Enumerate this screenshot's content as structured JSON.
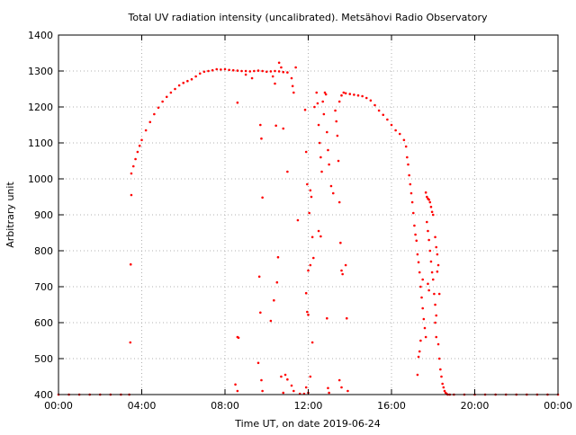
{
  "chart_data": {
    "type": "scatter",
    "title": "Total UV radiation intensity (uncalibrated). Metsähovi Radio Observatory",
    "xlabel": "Time UT, on date 2019-06-24",
    "ylabel": "Arbitrary unit",
    "xlim": [
      0,
      24
    ],
    "ylim": [
      400,
      1400
    ],
    "x_unit": "hours UT",
    "xticks": [
      {
        "value": 0,
        "label": "00:00"
      },
      {
        "value": 4,
        "label": "04:00"
      },
      {
        "value": 8,
        "label": "08:00"
      },
      {
        "value": 12,
        "label": "12:00"
      },
      {
        "value": 16,
        "label": "16:00"
      },
      {
        "value": 20,
        "label": "20:00"
      },
      {
        "value": 24,
        "label": "00:00"
      }
    ],
    "yticks": [
      400,
      500,
      600,
      700,
      800,
      900,
      1000,
      1100,
      1200,
      1300,
      1400
    ],
    "grid": true,
    "marker_color": "#ff0000",
    "series": [
      {
        "points": [
          [
            0.0,
            400
          ],
          [
            0.5,
            400
          ],
          [
            1.0,
            400
          ],
          [
            1.5,
            400
          ],
          [
            2.0,
            400
          ],
          [
            2.5,
            400
          ],
          [
            3.0,
            400
          ],
          [
            3.4,
            400
          ],
          [
            3.45,
            545
          ],
          [
            3.47,
            762
          ],
          [
            3.5,
            955
          ],
          [
            3.5,
            1015
          ],
          [
            3.6,
            1035
          ],
          [
            3.7,
            1055
          ],
          [
            3.8,
            1075
          ],
          [
            3.9,
            1092
          ],
          [
            4.0,
            1108
          ],
          [
            4.2,
            1135
          ],
          [
            4.4,
            1158
          ],
          [
            4.6,
            1180
          ],
          [
            4.8,
            1198
          ],
          [
            5.0,
            1215
          ],
          [
            5.2,
            1228
          ],
          [
            5.4,
            1240
          ],
          [
            5.6,
            1250
          ],
          [
            5.8,
            1260
          ],
          [
            6.0,
            1267
          ],
          [
            6.2,
            1272
          ],
          [
            6.4,
            1277
          ],
          [
            6.6,
            1285
          ],
          [
            6.8,
            1293
          ],
          [
            7.0,
            1298
          ],
          [
            7.2,
            1300
          ],
          [
            7.4,
            1302
          ],
          [
            7.6,
            1305
          ],
          [
            7.8,
            1304
          ],
          [
            8.0,
            1305
          ],
          [
            8.2,
            1303
          ],
          [
            8.4,
            1302
          ],
          [
            8.6,
            1301
          ],
          [
            8.8,
            1300
          ],
          [
            9.0,
            1300
          ],
          [
            9.2,
            1299
          ],
          [
            9.4,
            1300
          ],
          [
            9.6,
            1301
          ],
          [
            9.8,
            1300
          ],
          [
            10.0,
            1298
          ],
          [
            10.2,
            1299
          ],
          [
            10.4,
            1300
          ],
          [
            10.6,
            1299
          ],
          [
            10.8,
            1297
          ],
          [
            11.0,
            1296
          ],
          [
            8.6,
            1212
          ],
          [
            9.0,
            1290
          ],
          [
            9.3,
            1280
          ],
          [
            9.7,
            1150
          ],
          [
            9.75,
            1112
          ],
          [
            9.8,
            948
          ],
          [
            10.3,
            1285
          ],
          [
            10.4,
            1265
          ],
          [
            10.45,
            1148
          ],
          [
            10.6,
            1323
          ],
          [
            10.7,
            1310
          ],
          [
            10.8,
            1140
          ],
          [
            11.0,
            1020
          ],
          [
            11.2,
            1280
          ],
          [
            11.25,
            1258
          ],
          [
            11.3,
            1240
          ],
          [
            11.4,
            1310
          ],
          [
            11.5,
            885
          ],
          [
            8.6,
            560
          ],
          [
            8.65,
            558
          ],
          [
            8.5,
            428
          ],
          [
            8.6,
            410
          ],
          [
            9.6,
            488
          ],
          [
            9.65,
            728
          ],
          [
            9.7,
            628
          ],
          [
            9.75,
            440
          ],
          [
            9.8,
            410
          ],
          [
            10.2,
            605
          ],
          [
            10.35,
            662
          ],
          [
            10.5,
            712
          ],
          [
            10.55,
            782
          ],
          [
            10.7,
            450
          ],
          [
            10.8,
            405
          ],
          [
            10.9,
            455
          ],
          [
            11.0,
            442
          ],
          [
            11.2,
            425
          ],
          [
            11.3,
            410
          ],
          [
            11.6,
            402
          ],
          [
            11.8,
            402
          ],
          [
            12.0,
            405
          ],
          [
            11.85,
            1192
          ],
          [
            11.9,
            1075
          ],
          [
            11.95,
            985
          ],
          [
            12.05,
            905
          ],
          [
            12.1,
            968
          ],
          [
            12.15,
            950
          ],
          [
            12.2,
            838
          ],
          [
            12.25,
            780
          ],
          [
            12.1,
            760
          ],
          [
            12.0,
            745
          ],
          [
            11.9,
            682
          ],
          [
            11.95,
            630
          ],
          [
            12.0,
            622
          ],
          [
            12.2,
            545
          ],
          [
            12.1,
            450
          ],
          [
            11.9,
            420
          ],
          [
            12.3,
            1200
          ],
          [
            12.4,
            1240
          ],
          [
            12.45,
            1210
          ],
          [
            12.5,
            1150
          ],
          [
            12.55,
            1100
          ],
          [
            12.6,
            1060
          ],
          [
            12.65,
            1020
          ],
          [
            12.5,
            855
          ],
          [
            12.6,
            840
          ],
          [
            12.7,
            1215
          ],
          [
            12.75,
            1180
          ],
          [
            12.8,
            1240
          ],
          [
            12.85,
            1235
          ],
          [
            12.9,
            1130
          ],
          [
            12.95,
            1080
          ],
          [
            13.0,
            1040
          ],
          [
            13.1,
            980
          ],
          [
            13.2,
            960
          ],
          [
            12.9,
            612
          ],
          [
            12.95,
            418
          ],
          [
            13.0,
            405
          ],
          [
            13.3,
            1190
          ],
          [
            13.35,
            1160
          ],
          [
            13.4,
            1120
          ],
          [
            13.45,
            1050
          ],
          [
            13.5,
            935
          ],
          [
            13.55,
            822
          ],
          [
            13.6,
            745
          ],
          [
            13.65,
            735
          ],
          [
            13.5,
            440
          ],
          [
            13.6,
            420
          ],
          [
            13.8,
            760
          ],
          [
            13.85,
            612
          ],
          [
            13.9,
            410
          ],
          [
            13.5,
            1215
          ],
          [
            13.6,
            1232
          ],
          [
            13.7,
            1240
          ],
          [
            13.8,
            1238
          ],
          [
            14.0,
            1236
          ],
          [
            14.2,
            1234
          ],
          [
            14.4,
            1232
          ],
          [
            14.6,
            1230
          ],
          [
            14.8,
            1225
          ],
          [
            15.0,
            1218
          ],
          [
            15.2,
            1205
          ],
          [
            15.4,
            1190
          ],
          [
            15.6,
            1178
          ],
          [
            15.8,
            1165
          ],
          [
            16.0,
            1150
          ],
          [
            16.2,
            1135
          ],
          [
            16.4,
            1125
          ],
          [
            16.6,
            1108
          ],
          [
            16.7,
            1090
          ],
          [
            16.75,
            1060
          ],
          [
            16.8,
            1040
          ],
          [
            16.85,
            1010
          ],
          [
            16.9,
            985
          ],
          [
            16.95,
            960
          ],
          [
            17.0,
            935
          ],
          [
            17.05,
            905
          ],
          [
            17.1,
            870
          ],
          [
            17.15,
            845
          ],
          [
            17.2,
            828
          ],
          [
            17.25,
            790
          ],
          [
            17.3,
            768
          ],
          [
            17.35,
            740
          ],
          [
            17.4,
            700
          ],
          [
            17.45,
            670
          ],
          [
            17.5,
            640
          ],
          [
            17.55,
            610
          ],
          [
            17.6,
            585
          ],
          [
            17.65,
            560
          ],
          [
            17.25,
            455
          ],
          [
            17.3,
            505
          ],
          [
            17.35,
            520
          ],
          [
            17.4,
            550
          ],
          [
            17.5,
            720
          ],
          [
            17.65,
            962
          ],
          [
            17.7,
            950
          ],
          [
            17.75,
            945
          ],
          [
            17.8,
            942
          ],
          [
            17.85,
            935
          ],
          [
            17.9,
            922
          ],
          [
            17.95,
            908
          ],
          [
            18.0,
            900
          ],
          [
            17.7,
            880
          ],
          [
            17.75,
            855
          ],
          [
            17.8,
            830
          ],
          [
            17.85,
            800
          ],
          [
            17.9,
            770
          ],
          [
            17.95,
            740
          ],
          [
            18.0,
            720
          ],
          [
            18.05,
            680
          ],
          [
            18.1,
            650
          ],
          [
            18.15,
            620
          ],
          [
            17.75,
            708
          ],
          [
            17.8,
            690
          ],
          [
            18.1,
            600
          ],
          [
            18.15,
            560
          ],
          [
            18.1,
            838
          ],
          [
            18.15,
            810
          ],
          [
            18.2,
            790
          ],
          [
            18.25,
            760
          ],
          [
            18.2,
            742
          ],
          [
            18.3,
            680
          ],
          [
            18.25,
            540
          ],
          [
            18.3,
            500
          ],
          [
            18.35,
            470
          ],
          [
            18.4,
            450
          ],
          [
            18.45,
            430
          ],
          [
            18.5,
            420
          ],
          [
            18.55,
            410
          ],
          [
            18.6,
            405
          ],
          [
            18.65,
            402
          ],
          [
            18.7,
            400
          ],
          [
            18.8,
            400
          ],
          [
            19.0,
            400
          ],
          [
            19.5,
            400
          ],
          [
            20.0,
            400
          ],
          [
            20.5,
            400
          ],
          [
            21.0,
            400
          ],
          [
            21.5,
            400
          ],
          [
            22.0,
            400
          ],
          [
            22.5,
            400
          ],
          [
            23.0,
            400
          ],
          [
            23.5,
            400
          ],
          [
            24.0,
            400
          ]
        ]
      }
    ]
  }
}
